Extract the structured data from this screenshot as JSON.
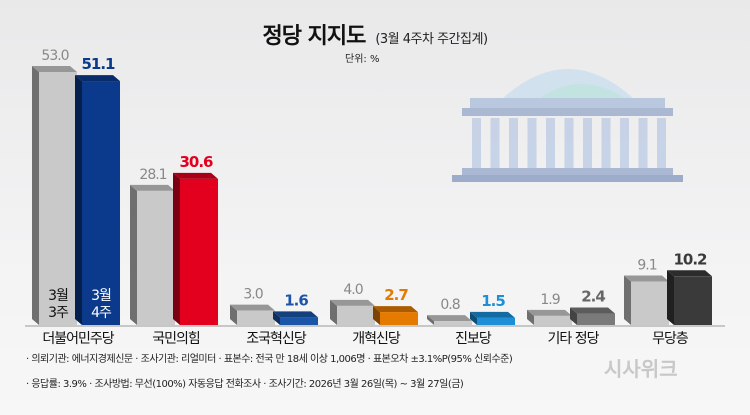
{
  "title": "정당 지지도",
  "subtitle": "(3월 4주차 주간집계)",
  "unit": "단위: %",
  "chart_data": {
    "type": "bar",
    "title": "정당 지지도",
    "categories": [
      "더불어민주당",
      "국민의힘",
      "조국혁신당",
      "개혁신당",
      "진보당",
      "기타 정당",
      "무당층"
    ],
    "series": [
      {
        "name": "3월 3주",
        "values": [
          53.0,
          28.1,
          3.0,
          4.0,
          0.8,
          1.9,
          9.1
        ],
        "color": "#c9c9c9"
      },
      {
        "name": "3월 4주",
        "values": [
          51.1,
          30.6,
          1.6,
          2.7,
          1.5,
          2.4,
          10.2
        ],
        "colors": [
          "#0b3a8c",
          "#e2001e",
          "#1b55a8",
          "#e47a00",
          "#1c8fd6",
          "#7a7a7a",
          "#3a3a3a"
        ]
      }
    ],
    "series_labels": [
      [
        "3월",
        "3주"
      ],
      [
        "3월",
        "4주"
      ]
    ],
    "ylim": [
      0,
      55
    ],
    "grid": false
  },
  "footer": {
    "line1": "· 의뢰기관: 에너지경제신문 · 조사기관: 리얼미터 · 표본수: 전국 만 18세 이상 1,006명 · 표본오차 ±3.1%P(95% 신뢰수준)",
    "line2": "· 응답률: 3.9% · 조사방법: 무선(100%) 자동응답 전화조사 · 조사기간: 2026년 3월 26일(목) ~ 3월 27일(금)"
  },
  "logo": "시사위크"
}
